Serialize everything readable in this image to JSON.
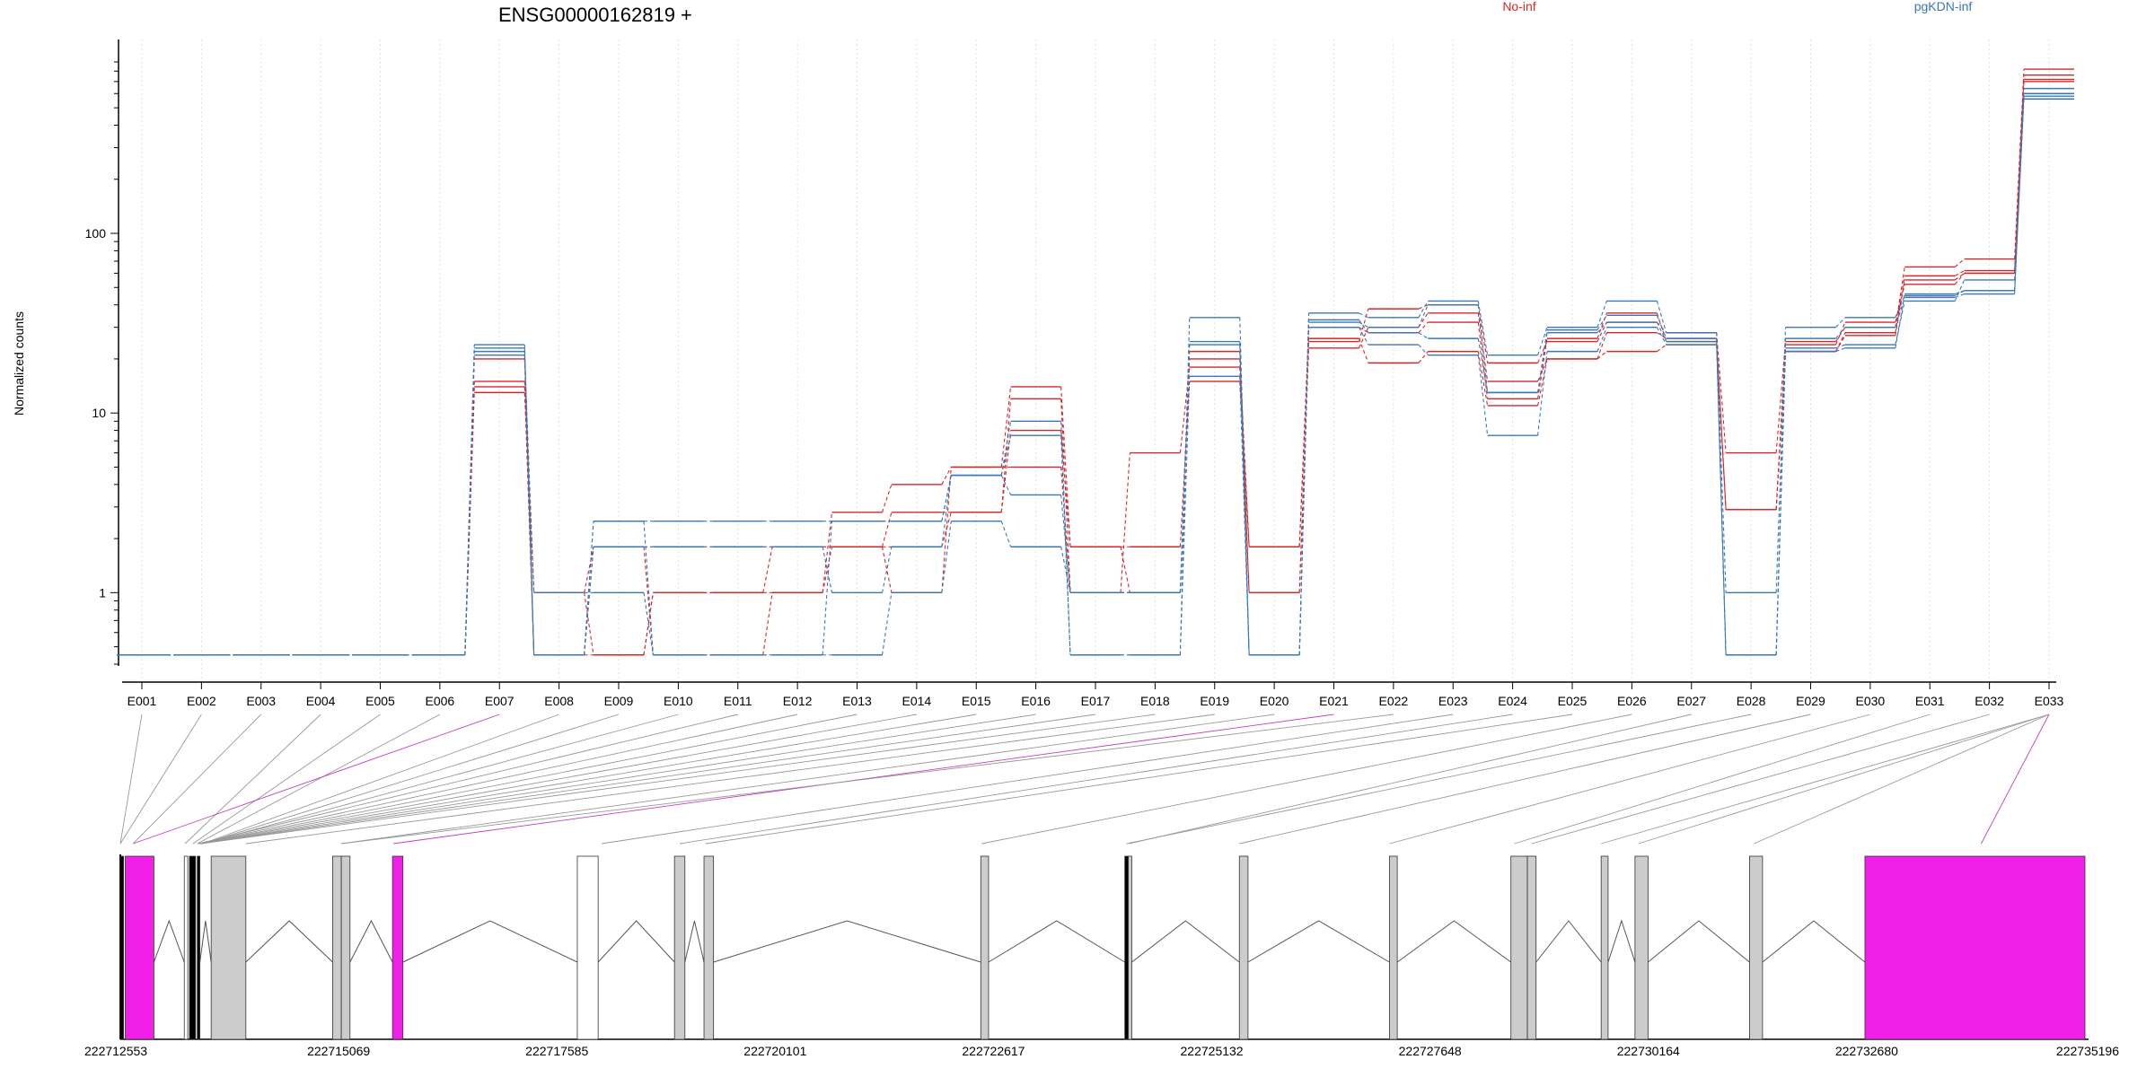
{
  "chart_data": {
    "type": "line",
    "title": "ENSG00000162819 +",
    "ylabel": "Normalized counts",
    "yscale": "log",
    "ylim": [
      0.4,
      900
    ],
    "yticks": [
      {
        "value": 1,
        "label": "1"
      },
      {
        "value": 10,
        "label": "10"
      },
      {
        "value": 100,
        "label": "100"
      }
    ],
    "grid": "vertical dotted",
    "categories": [
      "E001",
      "E002",
      "E003",
      "E004",
      "E005",
      "E006",
      "E007",
      "E008",
      "E009",
      "E010",
      "E011",
      "E012",
      "E013",
      "E014",
      "E015",
      "E016",
      "E017",
      "E018",
      "E019",
      "E020",
      "E021",
      "E022",
      "E023",
      "E024",
      "E025",
      "E026",
      "E027",
      "E028",
      "E029",
      "E030",
      "E031",
      "E032",
      "E033"
    ],
    "legend": [
      {
        "label": "No-inf",
        "color": "#d62728"
      },
      {
        "label": "pgKDN-inf",
        "color": "#3a78b5"
      }
    ],
    "series": [
      {
        "group": "No-inf",
        "color": "#d62728",
        "values": [
          0.45,
          0.45,
          0.45,
          0.45,
          0.45,
          0.45,
          15,
          1.0,
          0.45,
          1.0,
          1.0,
          1.0,
          2.8,
          4.0,
          5.0,
          14.0,
          1.8,
          1.8,
          15,
          1.8,
          25,
          38,
          40,
          19,
          25,
          32,
          28,
          6,
          25,
          30,
          65,
          72,
          820
        ]
      },
      {
        "group": "No-inf",
        "color": "#d62728",
        "values": [
          0.45,
          0.45,
          0.45,
          0.45,
          0.45,
          0.45,
          14,
          0.45,
          1.8,
          1.8,
          1.8,
          1.8,
          1.8,
          1.8,
          2.8,
          12.0,
          1.0,
          6.0,
          18,
          1.0,
          23,
          30,
          36,
          15,
          20,
          28,
          26,
          2.9,
          22,
          28,
          58,
          62,
          760
        ]
      },
      {
        "group": "No-inf",
        "color": "#d62728",
        "values": [
          0.45,
          0.45,
          0.45,
          0.45,
          0.45,
          0.45,
          13,
          1.0,
          1.8,
          0.45,
          0.45,
          1.0,
          1.8,
          2.8,
          2.8,
          8.0,
          1.8,
          1.0,
          22,
          1.0,
          26,
          19,
          22,
          11,
          20,
          22,
          24,
          2.9,
          22,
          27,
          55,
          60,
          720
        ]
      },
      {
        "group": "No-inf",
        "color": "#d62728",
        "values": [
          0.45,
          0.45,
          0.45,
          0.45,
          0.45,
          0.45,
          20,
          0.45,
          0.45,
          1.0,
          1.0,
          1.8,
          1.8,
          1.0,
          5.0,
          5.0,
          1.0,
          1.0,
          20,
          1.8,
          30,
          28,
          32,
          12,
          26,
          36,
          25,
          2.9,
          24,
          32,
          52,
          60,
          700
        ]
      },
      {
        "group": "pgKDN-inf",
        "color": "#3a78b5",
        "values": [
          0.45,
          0.45,
          0.45,
          0.45,
          0.45,
          0.45,
          24,
          0.45,
          2.5,
          2.5,
          2.5,
          2.5,
          2.5,
          2.5,
          4.5,
          9.0,
          0.45,
          0.45,
          34,
          0.45,
          36,
          34,
          42,
          21,
          30,
          42,
          28,
          1.0,
          30,
          34,
          45,
          48,
          640
        ]
      },
      {
        "group": "pgKDN-inf",
        "color": "#3a78b5",
        "values": [
          0.45,
          0.45,
          0.45,
          0.45,
          0.45,
          0.45,
          22,
          0.45,
          1.8,
          1.8,
          1.8,
          1.8,
          1.0,
          1.8,
          4.5,
          3.5,
          1.0,
          1.0,
          25,
          0.45,
          32,
          30,
          40,
          13,
          29,
          35,
          26,
          0.45,
          26,
          30,
          44,
          46,
          600
        ]
      },
      {
        "group": "pgKDN-inf",
        "color": "#3a78b5",
        "values": [
          0.45,
          0.45,
          0.45,
          0.45,
          0.45,
          0.45,
          21,
          1.0,
          1.0,
          0.45,
          0.45,
          0.45,
          0.45,
          1.0,
          2.5,
          1.8,
          1.0,
          1.0,
          24,
          0.45,
          30,
          24,
          21,
          7.5,
          22,
          30,
          24,
          0.45,
          23,
          24,
          42,
          55,
          580
        ]
      },
      {
        "group": "pgKDN-inf",
        "color": "#3a78b5",
        "values": [
          0.45,
          0.45,
          0.45,
          0.45,
          0.45,
          0.45,
          23,
          0.45,
          2.5,
          0.45,
          0.45,
          0.45,
          2.5,
          2.5,
          4.5,
          7.5,
          0.45,
          0.45,
          16,
          0.45,
          33,
          28,
          26,
          13,
          28,
          32,
          25,
          0.45,
          22,
          23,
          46,
          48,
          560
        ]
      }
    ],
    "gene_model": {
      "coordinate_labels": [
        "222712553",
        "222715069",
        "222717585",
        "222720101",
        "222722617",
        "222725132",
        "222727648",
        "222730164",
        "222732680",
        "222735196"
      ],
      "genome_range": [
        222712553,
        222735196
      ],
      "exons": [
        {
          "start": 222712553,
          "end": 222712590,
          "fill": "#000000"
        },
        {
          "start": 222712610,
          "end": 222712940,
          "fill": "#f020e8"
        },
        {
          "start": 222713290,
          "end": 222713330,
          "fill": "#ffffff"
        },
        {
          "start": 222713350,
          "end": 222713420,
          "fill": "#000000"
        },
        {
          "start": 222713440,
          "end": 222713470,
          "fill": "#000000"
        },
        {
          "start": 222713600,
          "end": 222714000,
          "fill": "#cccccc"
        },
        {
          "start": 222715000,
          "end": 222715100,
          "fill": "#cccccc"
        },
        {
          "start": 222715100,
          "end": 222715200,
          "fill": "#cccccc"
        },
        {
          "start": 222715690,
          "end": 222715810,
          "fill": "#f020e8"
        },
        {
          "start": 222717820,
          "end": 222718060,
          "fill": "#ffffff"
        },
        {
          "start": 222718940,
          "end": 222719060,
          "fill": "#cccccc"
        },
        {
          "start": 222719280,
          "end": 222719390,
          "fill": "#cccccc"
        },
        {
          "start": 222722470,
          "end": 222722560,
          "fill": "#cccccc"
        },
        {
          "start": 222724130,
          "end": 222724170,
          "fill": "#000000"
        },
        {
          "start": 222724170,
          "end": 222724210,
          "fill": "#cccccc"
        },
        {
          "start": 222725450,
          "end": 222725550,
          "fill": "#cccccc"
        },
        {
          "start": 222727180,
          "end": 222727270,
          "fill": "#cccccc"
        },
        {
          "start": 222728580,
          "end": 222728770,
          "fill": "#cccccc"
        },
        {
          "start": 222728770,
          "end": 222728870,
          "fill": "#cccccc"
        },
        {
          "start": 222729620,
          "end": 222729700,
          "fill": "#cccccc"
        },
        {
          "start": 222730010,
          "end": 222730160,
          "fill": "#cccccc"
        },
        {
          "start": 222731330,
          "end": 222731480,
          "fill": "#cccccc"
        },
        {
          "start": 222732660,
          "end": 222735196,
          "fill": "#f020e8"
        }
      ],
      "connector_targets": [
        222712553,
        222712553,
        222712700,
        222713300,
        222713390,
        222713440,
        222712700,
        222713500,
        222713500,
        222713500,
        222713450,
        222713460,
        222713470,
        222713470,
        222713480,
        222713480,
        222713480,
        222713480,
        222714000,
        222715100,
        222715700,
        222715100,
        222718100,
        222719000,
        222719300,
        222722480,
        222724180,
        222724150,
        222725450,
        222727180,
        222728620,
        222728820,
        222729620,
        222730050,
        222731380,
        222734000
      ]
    }
  }
}
